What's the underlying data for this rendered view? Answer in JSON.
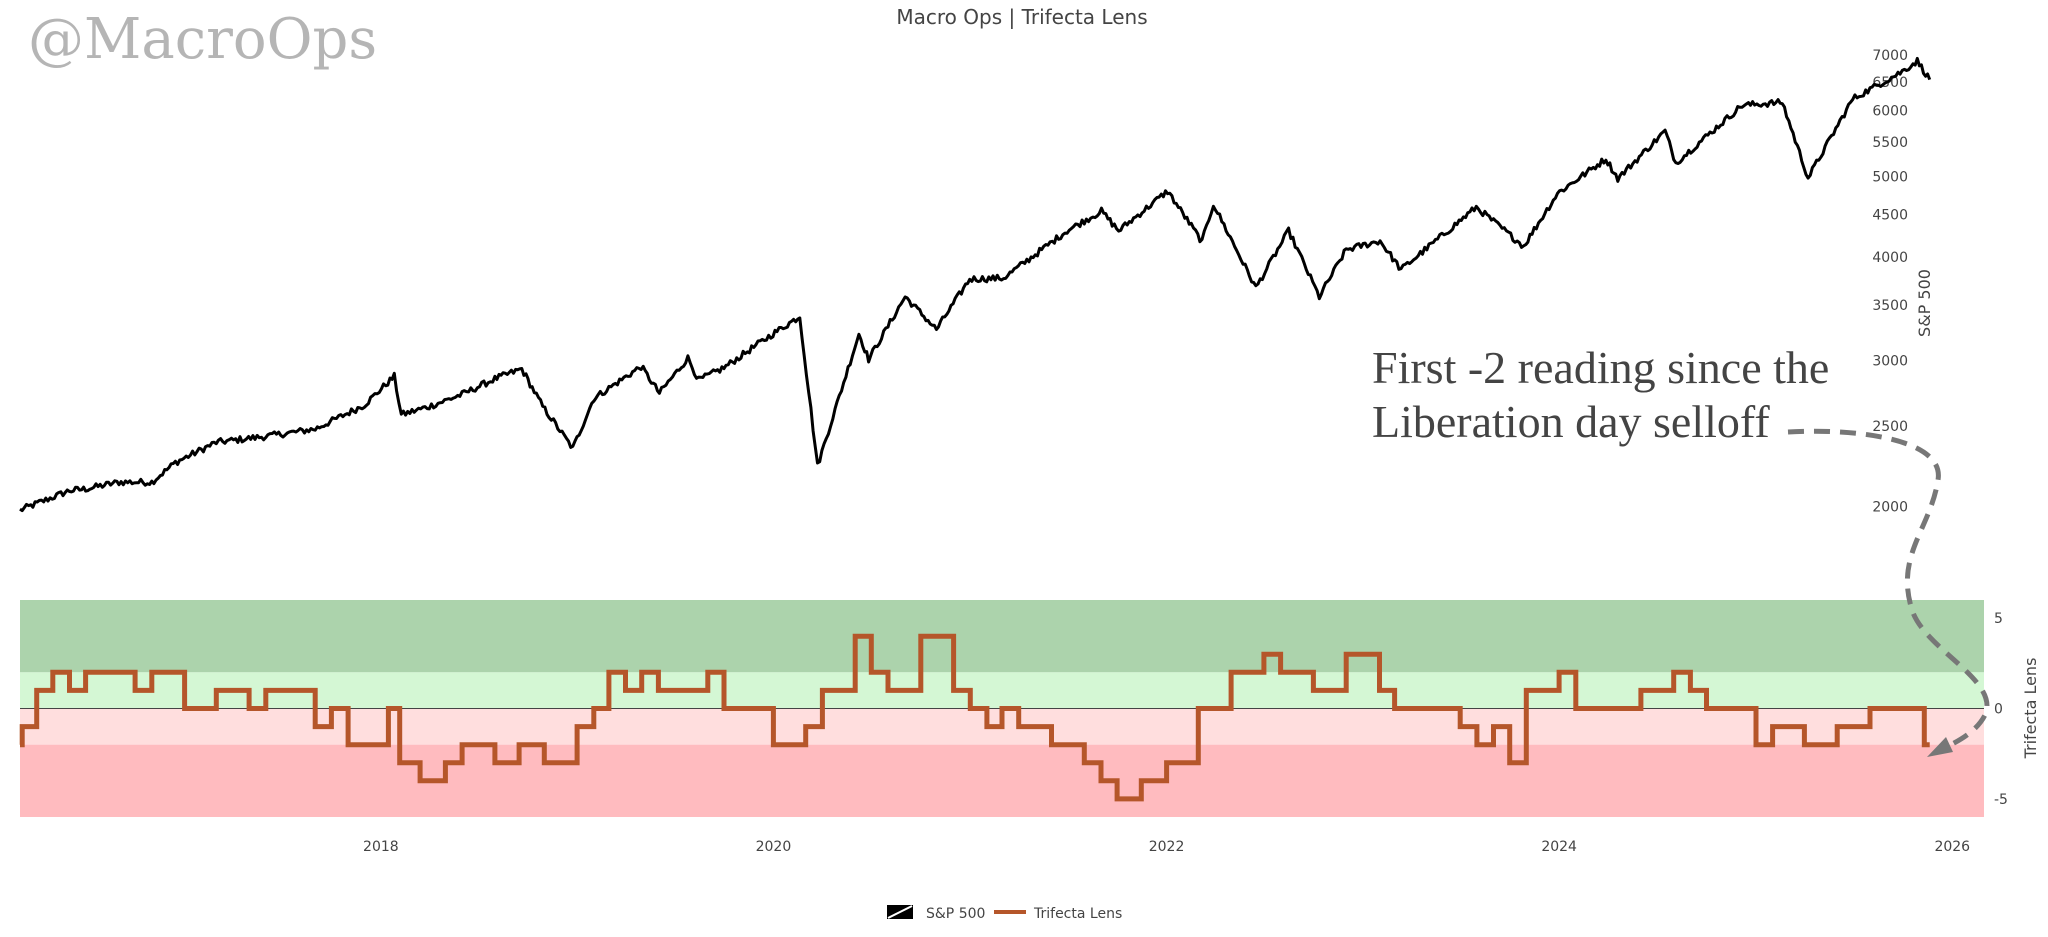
{
  "watermark": "@MacroOps",
  "chart_data": {
    "type": "line",
    "title": "Macro Ops | Trifecta Lens",
    "x_range": [
      "2016-03-01",
      "2026-03-01"
    ],
    "x_ticks": [
      "2018",
      "2020",
      "2022",
      "2024",
      "2026"
    ],
    "sp500": {
      "name": "S&P 500",
      "axis_title": "S&P 500",
      "scale": "log",
      "ticks": [
        "2000",
        "2500",
        "3000",
        "3500",
        "4000",
        "4500",
        "5000",
        "5500",
        "6000",
        "6500",
        "7000"
      ],
      "color": "#000000",
      "points": [
        [
          "2016-03-01",
          1980
        ],
        [
          "2016-06-01",
          2090
        ],
        [
          "2016-07-01",
          2100
        ],
        [
          "2016-09-01",
          2140
        ],
        [
          "2016-11-01",
          2140
        ],
        [
          "2016-12-15",
          2260
        ],
        [
          "2017-03-01",
          2390
        ],
        [
          "2017-06-01",
          2430
        ],
        [
          "2017-09-01",
          2480
        ],
        [
          "2017-12-01",
          2650
        ],
        [
          "2018-01-26",
          2870
        ],
        [
          "2018-02-08",
          2580
        ],
        [
          "2018-04-01",
          2640
        ],
        [
          "2018-06-01",
          2730
        ],
        [
          "2018-08-01",
          2850
        ],
        [
          "2018-09-20",
          2930
        ],
        [
          "2018-10-29",
          2640
        ],
        [
          "2018-12-24",
          2350
        ],
        [
          "2019-02-01",
          2700
        ],
        [
          "2019-04-30",
          2950
        ],
        [
          "2019-06-03",
          2740
        ],
        [
          "2019-07-26",
          3020
        ],
        [
          "2019-08-15",
          2840
        ],
        [
          "2019-10-01",
          2940
        ],
        [
          "2019-12-31",
          3230
        ],
        [
          "2020-02-19",
          3390
        ],
        [
          "2020-03-23",
          2240
        ],
        [
          "2020-06-08",
          3230
        ],
        [
          "2020-06-26",
          3010
        ],
        [
          "2020-09-02",
          3580
        ],
        [
          "2020-10-30",
          3270
        ],
        [
          "2020-12-31",
          3760
        ],
        [
          "2021-03-04",
          3770
        ],
        [
          "2021-06-30",
          4300
        ],
        [
          "2021-09-02",
          4540
        ],
        [
          "2021-10-04",
          4300
        ],
        [
          "2022-01-03",
          4800
        ],
        [
          "2022-03-08",
          4170
        ],
        [
          "2022-03-29",
          4630
        ],
        [
          "2022-06-16",
          3670
        ],
        [
          "2022-08-16",
          4300
        ],
        [
          "2022-10-12",
          3580
        ],
        [
          "2022-12-01",
          4080
        ],
        [
          "2023-02-02",
          4180
        ],
        [
          "2023-03-13",
          3860
        ],
        [
          "2023-07-31",
          4590
        ],
        [
          "2023-10-27",
          4120
        ],
        [
          "2023-12-29",
          4770
        ],
        [
          "2024-03-28",
          5250
        ],
        [
          "2024-04-19",
          4970
        ],
        [
          "2024-07-16",
          5670
        ],
        [
          "2024-08-05",
          5190
        ],
        [
          "2024-12-06",
          6090
        ],
        [
          "2025-02-19",
          6140
        ],
        [
          "2025-04-08",
          4980
        ],
        [
          "2025-06-30",
          6200
        ],
        [
          "2025-09-30",
          6690
        ],
        [
          "2025-10-28",
          6890
        ],
        [
          "2025-11-20",
          6540
        ]
      ]
    },
    "trifecta": {
      "name": "Trifecta Lens",
      "axis_title": "Trifecta Lens",
      "ylim": [
        -6,
        6
      ],
      "ticks": [
        "5",
        "0",
        "-5"
      ],
      "color": "#b5562a",
      "bands": [
        {
          "from": 2,
          "to": 6,
          "color": "#acd3ac"
        },
        {
          "from": 0,
          "to": 2,
          "color": "#d4f7d4"
        },
        {
          "from": -2,
          "to": 0,
          "color": "#ffdede"
        },
        {
          "from": -6,
          "to": -2,
          "color": "#ffbbbf"
        }
      ],
      "steps": [
        [
          "2016-03-01",
          -2
        ],
        [
          "2016-03-05",
          -1
        ],
        [
          "2016-04-01",
          1
        ],
        [
          "2016-05-01",
          2
        ],
        [
          "2016-06-01",
          1
        ],
        [
          "2016-07-01",
          2
        ],
        [
          "2016-10-01",
          1
        ],
        [
          "2016-11-01",
          2
        ],
        [
          "2017-01-01",
          0
        ],
        [
          "2017-03-01",
          1
        ],
        [
          "2017-05-01",
          0
        ],
        [
          "2017-06-01",
          1
        ],
        [
          "2017-09-01",
          -1
        ],
        [
          "2017-10-01",
          0
        ],
        [
          "2017-11-01",
          -2
        ],
        [
          "2017-12-20",
          -2
        ],
        [
          "2018-01-15",
          0
        ],
        [
          "2018-02-05",
          -3
        ],
        [
          "2018-03-15",
          -4
        ],
        [
          "2018-05-01",
          -3
        ],
        [
          "2018-06-01",
          -2
        ],
        [
          "2018-08-01",
          -3
        ],
        [
          "2018-09-15",
          -2
        ],
        [
          "2018-11-01",
          -3
        ],
        [
          "2019-01-01",
          -1
        ],
        [
          "2019-02-01",
          0
        ],
        [
          "2019-03-01",
          2
        ],
        [
          "2019-04-01",
          1
        ],
        [
          "2019-05-01",
          2
        ],
        [
          "2019-06-01",
          1
        ],
        [
          "2019-09-01",
          2
        ],
        [
          "2019-10-01",
          0
        ],
        [
          "2020-01-01",
          -2
        ],
        [
          "2020-03-01",
          -1
        ],
        [
          "2020-04-01",
          1
        ],
        [
          "2020-06-01",
          4
        ],
        [
          "2020-07-01",
          2
        ],
        [
          "2020-08-01",
          1
        ],
        [
          "2020-10-01",
          4
        ],
        [
          "2020-12-01",
          1
        ],
        [
          "2021-01-01",
          0
        ],
        [
          "2021-02-01",
          -1
        ],
        [
          "2021-03-01",
          0
        ],
        [
          "2021-04-01",
          -1
        ],
        [
          "2021-06-01",
          -2
        ],
        [
          "2021-08-01",
          -3
        ],
        [
          "2021-09-01",
          -4
        ],
        [
          "2021-10-01",
          -5
        ],
        [
          "2021-11-15",
          -4
        ],
        [
          "2022-01-01",
          -3
        ],
        [
          "2022-03-01",
          0
        ],
        [
          "2022-05-01",
          2
        ],
        [
          "2022-07-01",
          3
        ],
        [
          "2022-08-01",
          2
        ],
        [
          "2022-10-01",
          1
        ],
        [
          "2022-12-01",
          3
        ],
        [
          "2023-02-01",
          1
        ],
        [
          "2023-03-01",
          0
        ],
        [
          "2023-07-01",
          -1
        ],
        [
          "2023-08-01",
          -2
        ],
        [
          "2023-09-01",
          -1
        ],
        [
          "2023-10-01",
          -3
        ],
        [
          "2023-11-01",
          1
        ],
        [
          "2024-01-01",
          2
        ],
        [
          "2024-02-01",
          0
        ],
        [
          "2024-06-01",
          1
        ],
        [
          "2024-08-01",
          2
        ],
        [
          "2024-09-01",
          1
        ],
        [
          "2024-10-01",
          0
        ],
        [
          "2025-01-01",
          -2
        ],
        [
          "2025-02-01",
          -1
        ],
        [
          "2025-04-01",
          -2
        ],
        [
          "2025-06-01",
          -1
        ],
        [
          "2025-08-01",
          0
        ],
        [
          "2025-10-15",
          0
        ],
        [
          "2025-11-10",
          -2
        ],
        [
          "2025-11-20",
          -2
        ]
      ]
    },
    "annotation": {
      "lines": [
        "First -2 reading since the",
        "Liberation day selloff"
      ],
      "arrow_color": "#777777"
    },
    "legend": [
      {
        "name": "S&P 500",
        "symbol": "candlestick",
        "color": "#000000"
      },
      {
        "name": "Trifecta Lens",
        "symbol": "line",
        "color": "#b5562a"
      }
    ],
    "legend_position": "bottom-center"
  }
}
